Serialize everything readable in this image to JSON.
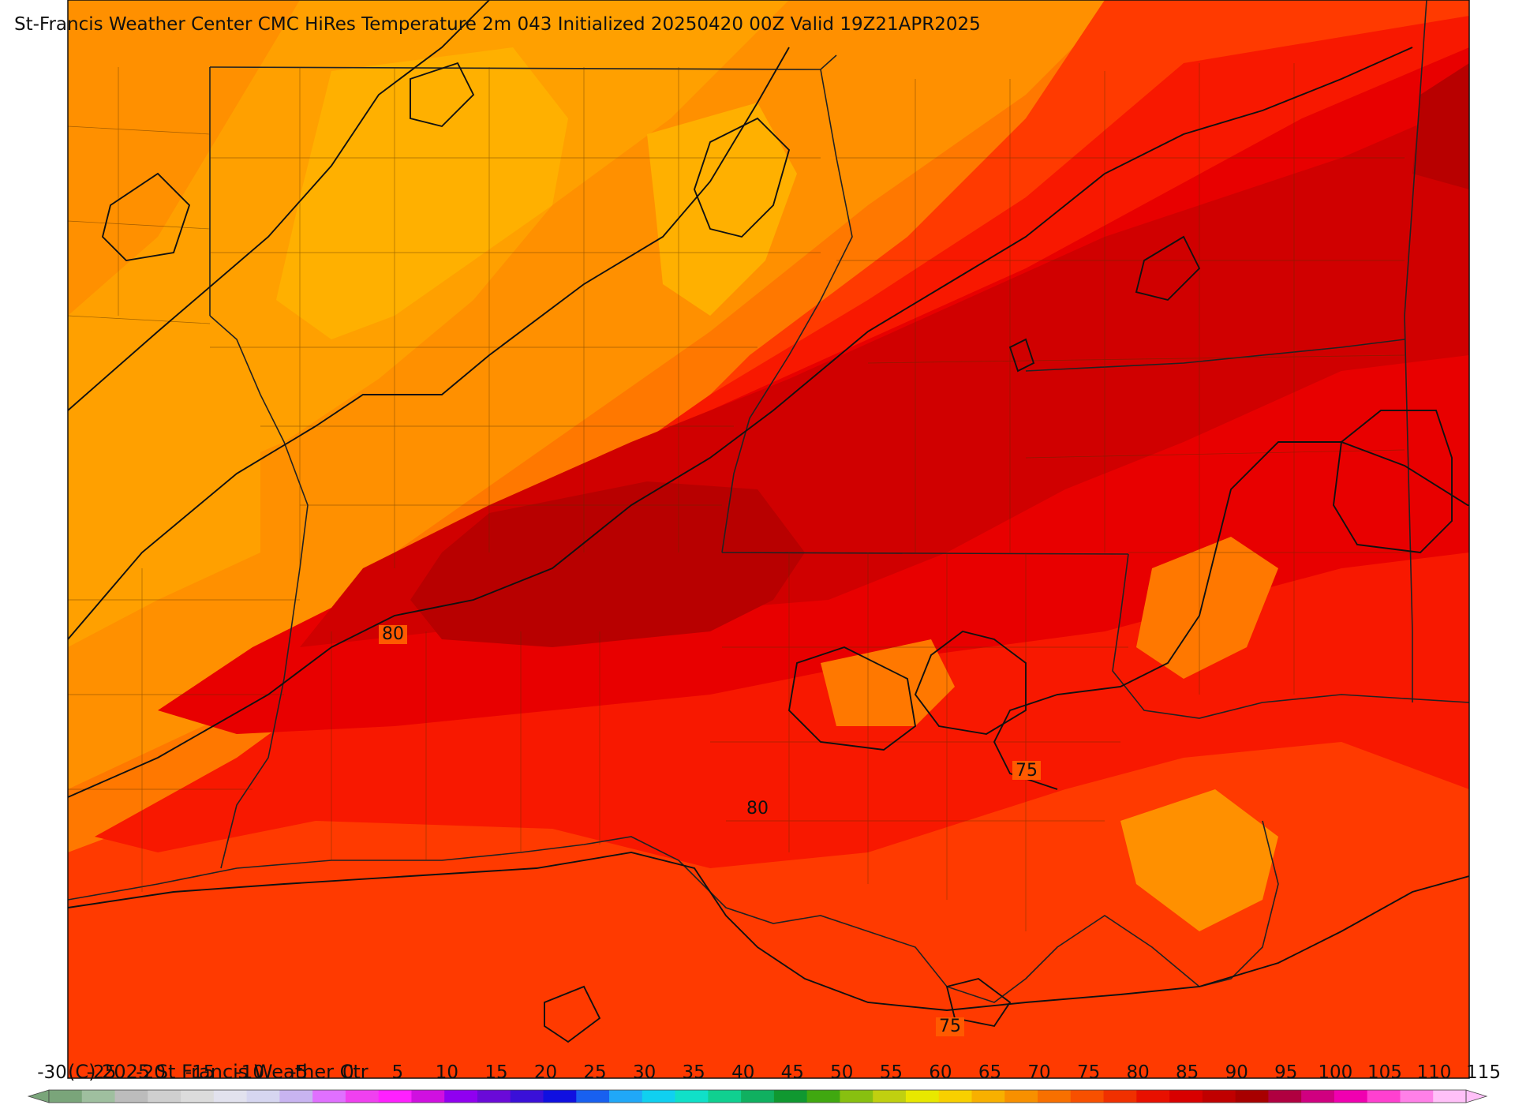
{
  "title": "St-Francis Weather Center CMC HiRes Temperature 2m  043 Initialized 20250420 00Z Valid 19Z21APR2025",
  "copyright": "(C) 2025 St Francis Weather Ctr",
  "contour_labels": [
    "80",
    "80",
    "75",
    "75"
  ],
  "colorbar": {
    "ticks": [
      "-30",
      "-25",
      "-20",
      "-15",
      "-10",
      "-5",
      "0",
      "5",
      "10",
      "15",
      "20",
      "25",
      "30",
      "35",
      "40",
      "45",
      "50",
      "55",
      "60",
      "65",
      "70",
      "75",
      "80",
      "85",
      "90",
      "95",
      "100",
      "105",
      "110",
      "115"
    ],
    "colors": [
      "#7aa57a",
      "#9fbf9f",
      "#bcbcbc",
      "#cfcfcf",
      "#dcdcdc",
      "#e2e2ee",
      "#d6d6f0",
      "#c8b4f0",
      "#e070ff",
      "#f040f0",
      "#ff20ff",
      "#d010e0",
      "#9000f0",
      "#6a0ad8",
      "#3a10d8",
      "#1010e0",
      "#1860f0",
      "#20a8f8",
      "#10d0f0",
      "#10e0c8",
      "#10d090",
      "#10b060",
      "#109830",
      "#40a810",
      "#88c010",
      "#c0d010",
      "#e8e800",
      "#f8d000",
      "#f8b000",
      "#f89000",
      "#f87000",
      "#f85000",
      "#f03000",
      "#e81000",
      "#d80000",
      "#c00000",
      "#a80000",
      "#b00040",
      "#d00080",
      "#f000b0",
      "#ff40d0",
      "#ff80e8",
      "#ffc0f8"
    ]
  },
  "legend_colors": {
    "t65": "#ffb000",
    "t70": "#ff9000",
    "t72": "#ff7800",
    "t75": "#ff5a00",
    "t78": "#ff3a00",
    "t80": "#f81800",
    "t83": "#e80000",
    "t85": "#d00000",
    "t88": "#b80000"
  }
}
